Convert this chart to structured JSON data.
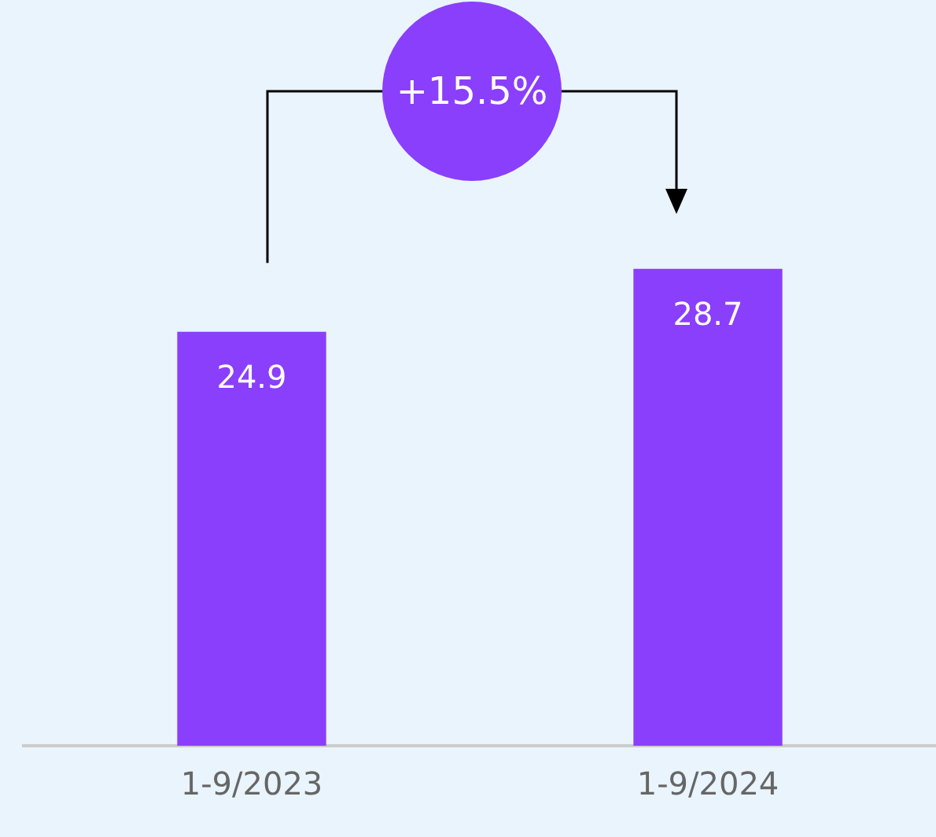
{
  "chart_data": {
    "type": "bar",
    "categories": [
      "1-9/2023",
      "1-9/2024"
    ],
    "values": [
      24.9,
      28.7
    ],
    "color": "#8a3ffc",
    "data_labels": true,
    "grid": false,
    "legend": false,
    "annotations": [
      "+15.5%"
    ]
  }
}
